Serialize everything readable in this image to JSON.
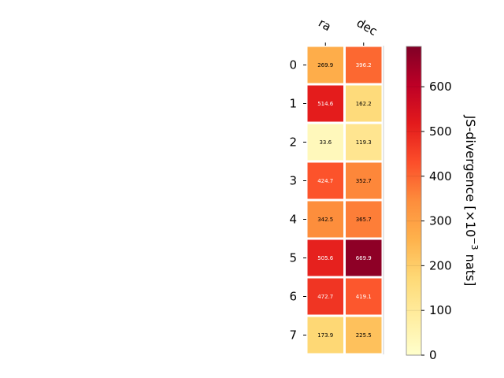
{
  "chart_data": {
    "type": "heatmap",
    "x_categories": [
      "ra",
      "dec"
    ],
    "y_categories": [
      "0",
      "1",
      "2",
      "3",
      "4",
      "5",
      "6",
      "7"
    ],
    "values": [
      [
        269.9,
        396.2
      ],
      [
        514.6,
        162.2
      ],
      [
        33.6,
        119.3
      ],
      [
        424.7,
        352.7
      ],
      [
        342.5,
        365.7
      ],
      [
        505.6,
        669.9
      ],
      [
        472.7,
        419.1
      ],
      [
        173.9,
        225.5
      ]
    ],
    "colorbar": {
      "label_prefix": "JS-divergence [×10",
      "label_exponent": "−3",
      "label_suffix": " nats]",
      "vmin": 0,
      "vmax": 690,
      "ticks": [
        0,
        100,
        200,
        300,
        400,
        500,
        600
      ]
    },
    "colormap": [
      "#ffffcc",
      "#ffeda0",
      "#fed976",
      "#feb24c",
      "#fd8d3c",
      "#fc4e2a",
      "#e31a1c",
      "#bd0026",
      "#800026"
    ]
  }
}
